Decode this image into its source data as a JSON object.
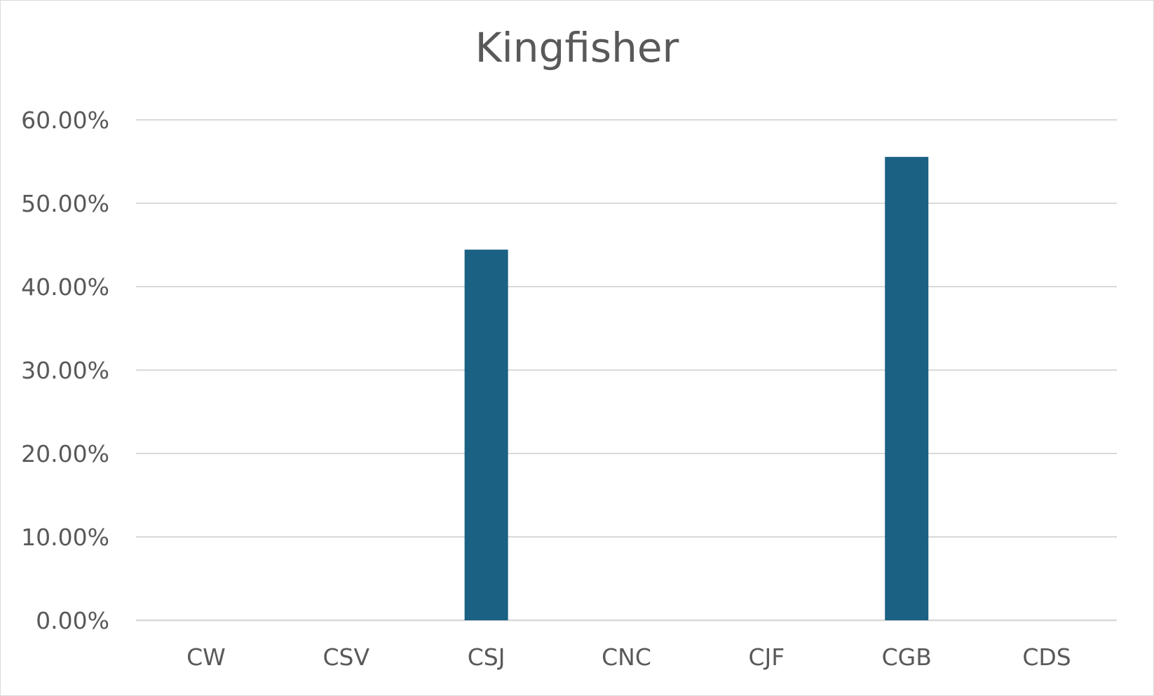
{
  "chart_data": {
    "type": "bar",
    "title": "Kingfisher",
    "xlabel": "",
    "ylabel": "",
    "categories": [
      "CW",
      "CSV",
      "CSJ",
      "CNC",
      "CJF",
      "CGB",
      "CDS"
    ],
    "values": [
      0,
      0,
      44.44,
      0,
      0,
      55.56,
      0
    ],
    "ylim": [
      0,
      60
    ],
    "yticks": [
      "0.00%",
      "10.00%",
      "20.00%",
      "30.00%",
      "40.00%",
      "50.00%",
      "60.00%"
    ],
    "grid": true,
    "legend": "none",
    "colors": {
      "bar": "#1a6183",
      "grid": "#d9d9d9",
      "text": "#595959"
    }
  }
}
